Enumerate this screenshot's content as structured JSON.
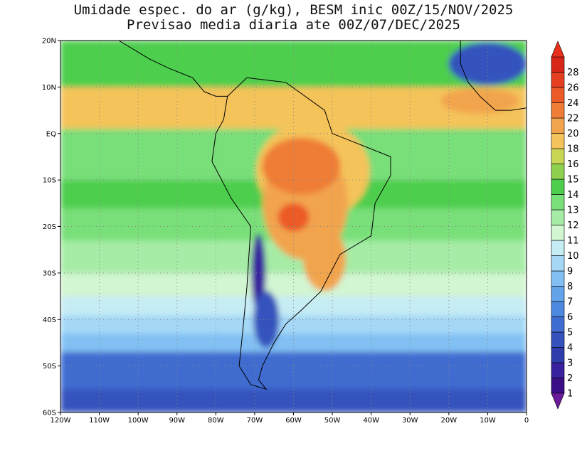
{
  "title": {
    "line1": "Umidade espec. do ar (g/kg), BESM inic 00Z/15/NOV/2025",
    "line2": "Previsao media diaria ate 00Z/07/DEC/2025"
  },
  "map": {
    "lon_range": [
      -120,
      0
    ],
    "lat_range": [
      -60,
      20
    ],
    "lon_ticks": [
      {
        "value": -120,
        "label": "120W"
      },
      {
        "value": -110,
        "label": "110W"
      },
      {
        "value": -100,
        "label": "100W"
      },
      {
        "value": -90,
        "label": "90W"
      },
      {
        "value": -80,
        "label": "80W"
      },
      {
        "value": -70,
        "label": "70W"
      },
      {
        "value": -60,
        "label": "60W"
      },
      {
        "value": -50,
        "label": "50W"
      },
      {
        "value": -40,
        "label": "40W"
      },
      {
        "value": -30,
        "label": "30W"
      },
      {
        "value": -20,
        "label": "20W"
      },
      {
        "value": -10,
        "label": "10W"
      },
      {
        "value": 0,
        "label": "0"
      }
    ],
    "lat_ticks": [
      {
        "value": 20,
        "label": "20N"
      },
      {
        "value": 10,
        "label": "10N"
      },
      {
        "value": 0,
        "label": "EQ"
      },
      {
        "value": -10,
        "label": "10S"
      },
      {
        "value": -20,
        "label": "20S"
      },
      {
        "value": -30,
        "label": "30S"
      },
      {
        "value": -40,
        "label": "40S"
      },
      {
        "value": -50,
        "label": "50S"
      },
      {
        "value": -60,
        "label": "60S"
      }
    ],
    "grid": "dotted"
  },
  "colorbar": {
    "labels": [
      "1",
      "2",
      "3",
      "4",
      "5",
      "6",
      "7",
      "8",
      "9",
      "10",
      "11",
      "12",
      "13",
      "14",
      "15",
      "16",
      "18",
      "20",
      "22",
      "24",
      "26",
      "28"
    ],
    "colors": [
      "#3b0e87",
      "#38209e",
      "#2e3dab",
      "#3552bd",
      "#3f6cd0",
      "#4d89df",
      "#63a3ea",
      "#82c0f3",
      "#a4d8f6",
      "#c6ecf4",
      "#d2f5d2",
      "#a6eca6",
      "#79df79",
      "#4dce4d",
      "#8fd14f",
      "#c9d654",
      "#f4c35a",
      "#f2a44d",
      "#ef7d35",
      "#ec5a27",
      "#e63e20",
      "#d82618"
    ]
  }
}
